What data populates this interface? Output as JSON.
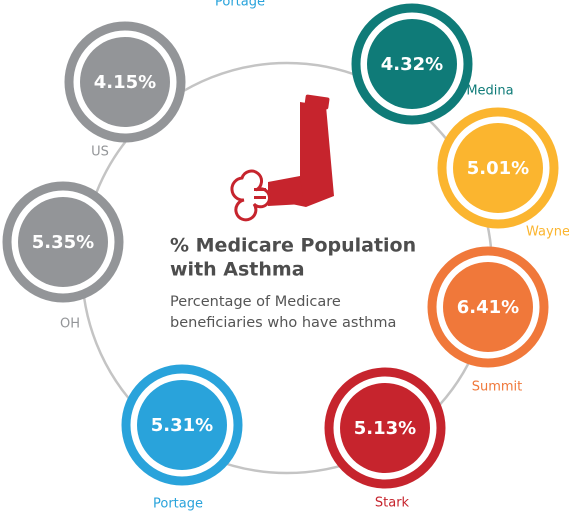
{
  "top_label": "Portage",
  "title_lines": [
    "% Medicare Population",
    "with Asthma"
  ],
  "subtitle_lines": [
    "Percentage of Medicare",
    "beneficiaries who have asthma"
  ],
  "items": [
    {
      "label": "US",
      "value_label": "4.15%",
      "color": "#939598"
    },
    {
      "label": "Medina",
      "value_label": "4.32%",
      "color": "#0f7b78"
    },
    {
      "label": "Wayne",
      "value_label": "5.01%",
      "color": "#fbb52f"
    },
    {
      "label": "OH",
      "value_label": "5.35%",
      "color": "#939598"
    },
    {
      "label": "Summit",
      "value_label": "6.41%",
      "color": "#f0783a"
    },
    {
      "label": "Stark",
      "value_label": "5.13%",
      "color": "#c6242d"
    },
    {
      "label": "Portage",
      "value_label": "5.31%",
      "color": "#29a3db"
    }
  ]
}
